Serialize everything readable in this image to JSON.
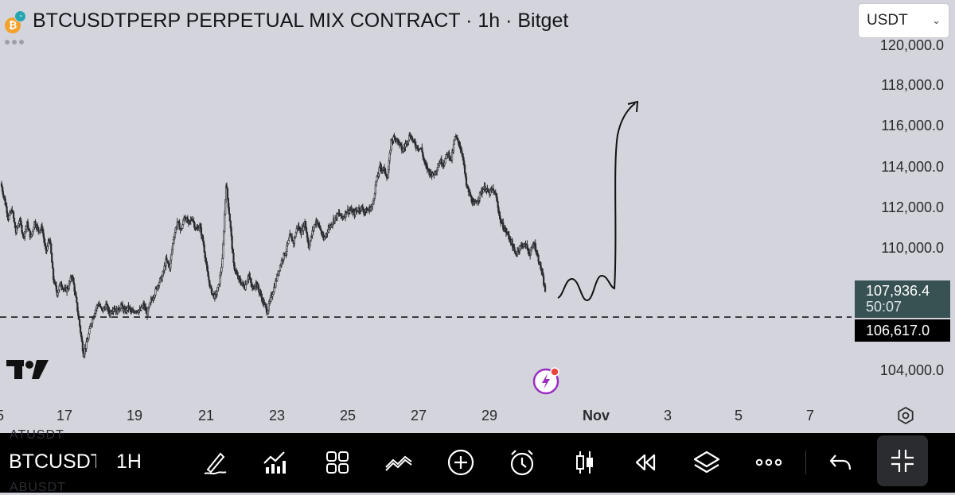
{
  "header": {
    "title": "BTCUSDTPERP PERPETUAL MIX CONTRACT · 1h · Bitget",
    "coin_symbol": "₿"
  },
  "currency_select": {
    "value": "USDT"
  },
  "price_axis": {
    "labels": [
      "120,000.0",
      "118,000.0",
      "116,000.0",
      "114,000.0",
      "112,000.0",
      "110,000.0",
      "104,000.0"
    ]
  },
  "current_price": {
    "value": "107,936.4",
    "countdown": "50:07"
  },
  "level_price": {
    "value": "106,617.0"
  },
  "time_axis": {
    "labels": [
      {
        "text": "5",
        "bold": false
      },
      {
        "text": "17",
        "bold": false
      },
      {
        "text": "19",
        "bold": false
      },
      {
        "text": "21",
        "bold": false
      },
      {
        "text": "23",
        "bold": false
      },
      {
        "text": "25",
        "bold": false
      },
      {
        "text": "27",
        "bold": false
      },
      {
        "text": "29",
        "bold": false
      },
      {
        "text": "Nov",
        "bold": true
      },
      {
        "text": "3",
        "bold": false
      },
      {
        "text": "5",
        "bold": false
      },
      {
        "text": "7",
        "bold": false
      }
    ]
  },
  "chart_data": {
    "type": "candlestick",
    "ylim": [
      102900,
      120900
    ],
    "horizontal_line": 106617,
    "current_price": 107936.4,
    "price_path_hourly": [
      113200,
      112400,
      111500,
      111900,
      110800,
      111400,
      110600,
      111200,
      110500,
      111300,
      110900,
      111000,
      109800,
      110500,
      108500,
      107800,
      108300,
      107900,
      108100,
      108700,
      107500,
      106200,
      104800,
      105400,
      106300,
      106900,
      107300,
      106900,
      107200,
      106800,
      107100,
      106900,
      107200,
      106900,
      107100,
      106800,
      107000,
      106900,
      107200,
      106800,
      107400,
      107800,
      108300,
      108600,
      109400,
      109100,
      110500,
      111300,
      110900,
      111600,
      111200,
      111500,
      110900,
      111100,
      110200,
      108800,
      107900,
      107600,
      108100,
      109400,
      113200,
      111400,
      109200,
      108600,
      108300,
      108100,
      108700,
      108000,
      108300,
      107800,
      107300,
      106900,
      107600,
      108200,
      108900,
      109500,
      109900,
      110600,
      110300,
      111100,
      110800,
      111300,
      110100,
      110800,
      111400,
      111000,
      110400,
      110900,
      111200,
      111500,
      111700,
      111500,
      111800,
      111900,
      111700,
      111900,
      112000,
      111800,
      111900,
      112100,
      113300,
      114000,
      113900,
      113500,
      115300,
      115500,
      115200,
      114800,
      115200,
      115600,
      115200,
      115000,
      114900,
      114100,
      113800,
      113600,
      113900,
      114300,
      114200,
      114700,
      114400,
      115500,
      115200,
      114600,
      113100,
      112600,
      112100,
      112400,
      112800,
      113000,
      112700,
      112900,
      112500,
      111400,
      111000,
      110700,
      110300,
      109700,
      110000,
      110200,
      110100,
      109700,
      110300,
      109600,
      108900,
      107900
    ],
    "annotation": "hand-drawn projection: sideways wave then sharp rally toward ~117,500"
  },
  "toolbar": {
    "symbol": "BTCUSDT",
    "interval": "1H",
    "ghost_top": "ATUSDT",
    "ghost_bottom": "ABUSDT",
    "icons": [
      "drawing-pen-icon",
      "indicators-icon",
      "templates-icon",
      "compare-icon",
      "add-icon",
      "alert-clock-icon",
      "candle-type-icon",
      "replay-icon",
      "layers-icon",
      "more-icon",
      "undo-icon",
      "minimize-icon"
    ]
  },
  "colors": {
    "background": "#d3d4dc",
    "candles": "#2a2b30",
    "current_price_tag": "#385254",
    "toolbar": "#000000",
    "flash_icon": "#9b2ec0"
  }
}
